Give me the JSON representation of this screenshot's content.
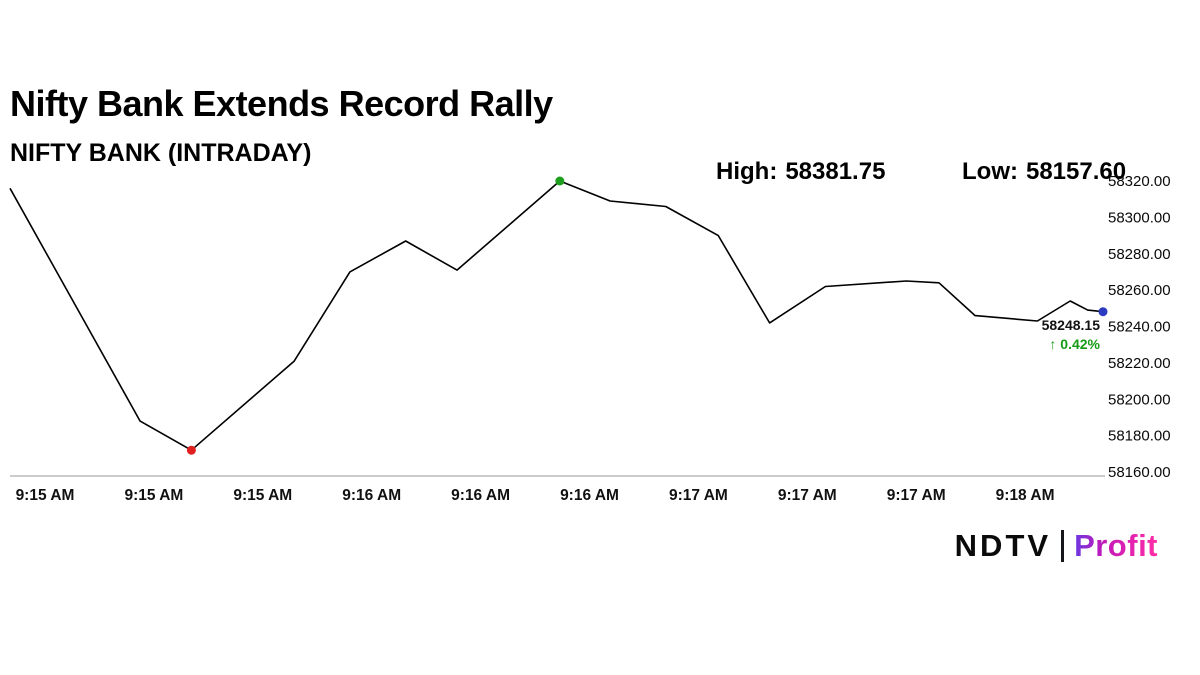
{
  "header": {
    "title": "Nifty Bank Extends Record Rally",
    "subtitle": "NIFTY BANK (INTRADAY)"
  },
  "stats": {
    "high_label": "High:",
    "high_value": "58381.75",
    "low_label": "Low:",
    "low_value": "58157.60"
  },
  "logo": {
    "ndtv": "NDTV",
    "profit": "Profit"
  },
  "chart_data": {
    "type": "line",
    "title": "NIFTY BANK (INTRADAY)",
    "line_color": "#000000",
    "axis_line_color": "#9a9a9a",
    "legend": "none",
    "grid": false,
    "y_axis": {
      "side": "right",
      "min": 58160,
      "max": 58320,
      "step": 20
    },
    "y_ticks": [
      58320,
      58300,
      58280,
      58260,
      58240,
      58220,
      58200,
      58180,
      58160
    ],
    "x_ticks": [
      "9:15 AM",
      "9:15 AM",
      "9:15 AM",
      "9:16 AM",
      "9:16 AM",
      "9:16 AM",
      "9:17 AM",
      "9:17 AM",
      "9:17 AM",
      "9:18 AM"
    ],
    "high": 58381.75,
    "low": 58157.6,
    "last": 58248.15,
    "last_label": "58248.15",
    "change_label": "↑ 0.42%",
    "change_color": "#169a16",
    "marker_colors": {
      "high": "#1e9e1e",
      "low": "#e01f1f",
      "last": "#2b3bbf"
    },
    "high_index": 7,
    "low_index": 2,
    "last_index": 19,
    "points": [
      {
        "x": 0.0,
        "v": 58316.0
      },
      {
        "x": 0.119,
        "v": 58188.0
      },
      {
        "x": 0.166,
        "v": 58172.0
      },
      {
        "x": 0.26,
        "v": 58221.0
      },
      {
        "x": 0.311,
        "v": 58270.0
      },
      {
        "x": 0.362,
        "v": 58287.0
      },
      {
        "x": 0.409,
        "v": 58271.0
      },
      {
        "x": 0.503,
        "v": 58320.0
      },
      {
        "x": 0.549,
        "v": 58309.0
      },
      {
        "x": 0.6,
        "v": 58306.0
      },
      {
        "x": 0.648,
        "v": 58290.0
      },
      {
        "x": 0.695,
        "v": 58242.0
      },
      {
        "x": 0.746,
        "v": 58262.0
      },
      {
        "x": 0.82,
        "v": 58265.0
      },
      {
        "x": 0.85,
        "v": 58264.0
      },
      {
        "x": 0.883,
        "v": 58246.0
      },
      {
        "x": 0.94,
        "v": 58243.0
      },
      {
        "x": 0.97,
        "v": 58254.0
      },
      {
        "x": 0.986,
        "v": 58249.0
      },
      {
        "x": 1.0,
        "v": 58248.15
      }
    ]
  }
}
